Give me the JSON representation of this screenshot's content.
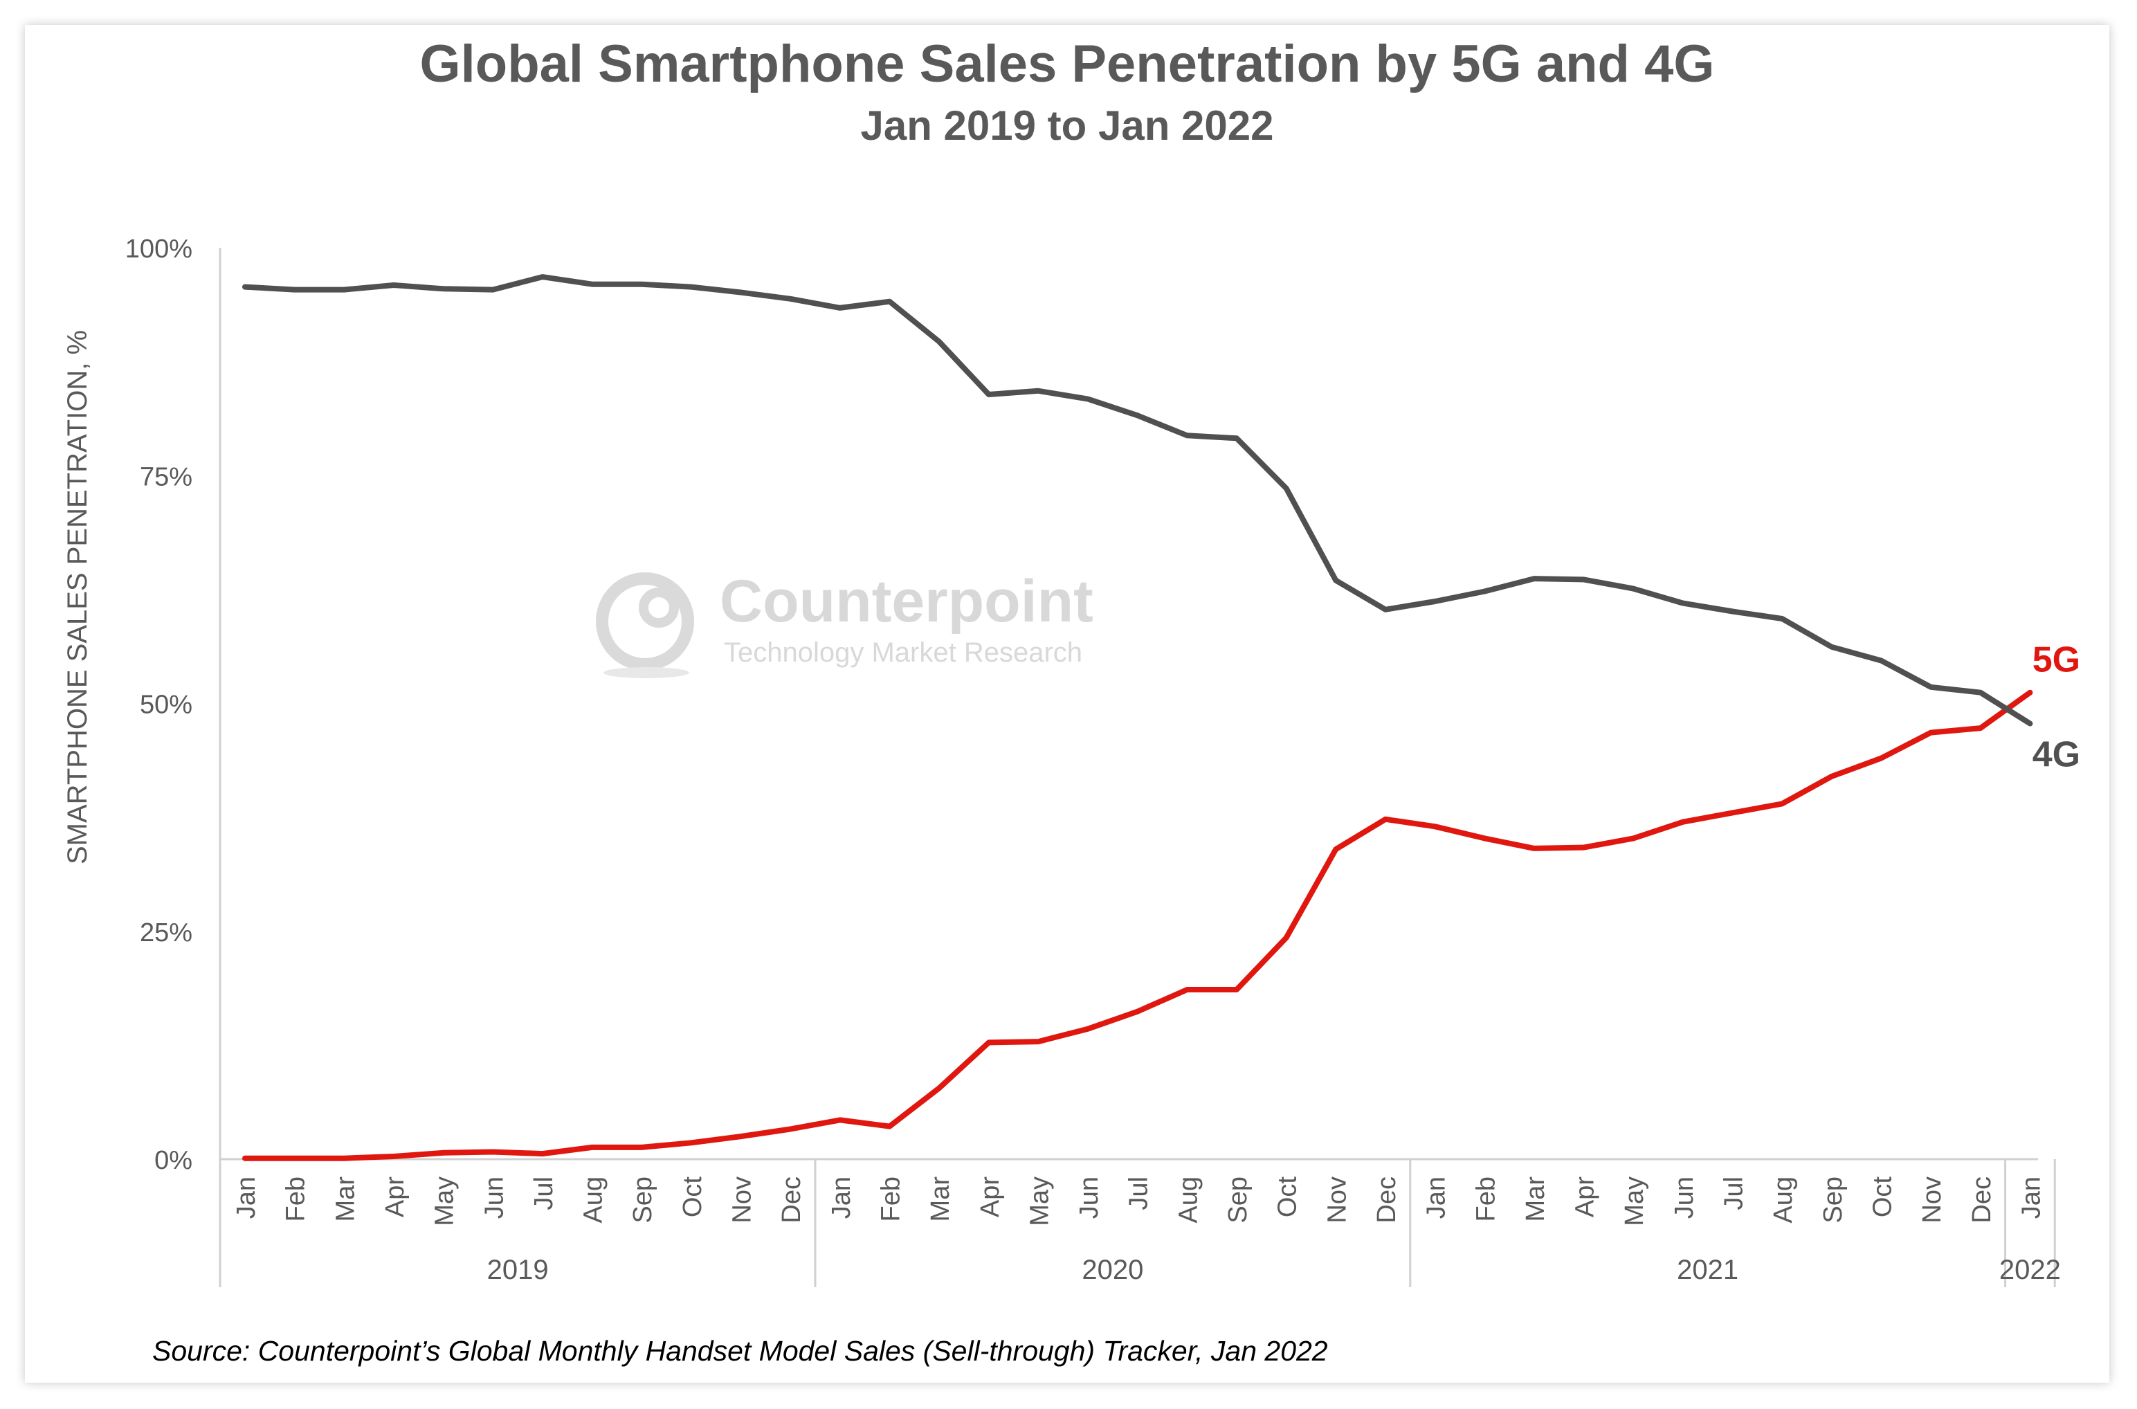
{
  "chart_data": {
    "type": "line",
    "title": "Global Smartphone Sales Penetration by 5G and 4G",
    "subtitle": "Jan 2019 to Jan 2022",
    "ylabel": "SMARTPHONE SALES PENETRATION, %",
    "ylim": [
      0,
      100
    ],
    "yticks": [
      "0%",
      "25%",
      "50%",
      "75%",
      "100%"
    ],
    "ytick_values": [
      0,
      25,
      50,
      75,
      100
    ],
    "grid": false,
    "legend": "inline labels at line ends",
    "x": [
      "Jan",
      "Feb",
      "Mar",
      "Apr",
      "May",
      "Jun",
      "Jul",
      "Aug",
      "Sep",
      "Oct",
      "Nov",
      "Dec",
      "Jan",
      "Feb",
      "Mar",
      "Apr",
      "May",
      "Jun",
      "Jul",
      "Aug",
      "Sep",
      "Oct",
      "Nov",
      "Dec",
      "Jan",
      "Feb",
      "Mar",
      "Apr",
      "May",
      "Jun",
      "Jul",
      "Aug",
      "Sep",
      "Oct",
      "Nov",
      "Dec",
      "Jan"
    ],
    "year_groups": [
      {
        "label": "2019",
        "count": 12
      },
      {
        "label": "2020",
        "count": 12
      },
      {
        "label": "2021",
        "count": 12
      },
      {
        "label": "2022",
        "count": 1
      }
    ],
    "series": [
      {
        "name": "5G",
        "color": "#e0170f",
        "values": [
          0.1,
          0.1,
          0.1,
          0.3,
          0.7,
          0.8,
          0.6,
          1.3,
          1.3,
          1.8,
          2.5,
          3.3,
          4.3,
          3.6,
          7.8,
          12.8,
          12.9,
          14.3,
          16.2,
          18.6,
          18.6,
          24.3,
          34.0,
          37.3,
          36.5,
          35.2,
          34.1,
          34.2,
          35.2,
          37.0,
          38.0,
          39.0,
          42.0,
          44.0,
          46.8,
          47.3,
          51.2
        ]
      },
      {
        "name": "4G",
        "color": "#505050",
        "values": [
          95.7,
          95.4,
          95.4,
          95.9,
          95.5,
          95.4,
          96.8,
          96.0,
          96.0,
          95.7,
          95.1,
          94.4,
          93.4,
          94.1,
          89.7,
          83.9,
          84.3,
          83.4,
          81.6,
          79.4,
          79.1,
          73.6,
          63.5,
          60.3,
          61.2,
          62.3,
          63.7,
          63.6,
          62.6,
          61.0,
          60.1,
          59.3,
          56.2,
          54.7,
          51.8,
          51.2,
          47.8
        ]
      }
    ]
  },
  "watermark": {
    "brand": "Counterpoint",
    "tagline": "Technology Market Research"
  },
  "source": "Source: Counterpoint’s Global Monthly Handset Model Sales (Sell-through) Tracker, Jan 2022"
}
